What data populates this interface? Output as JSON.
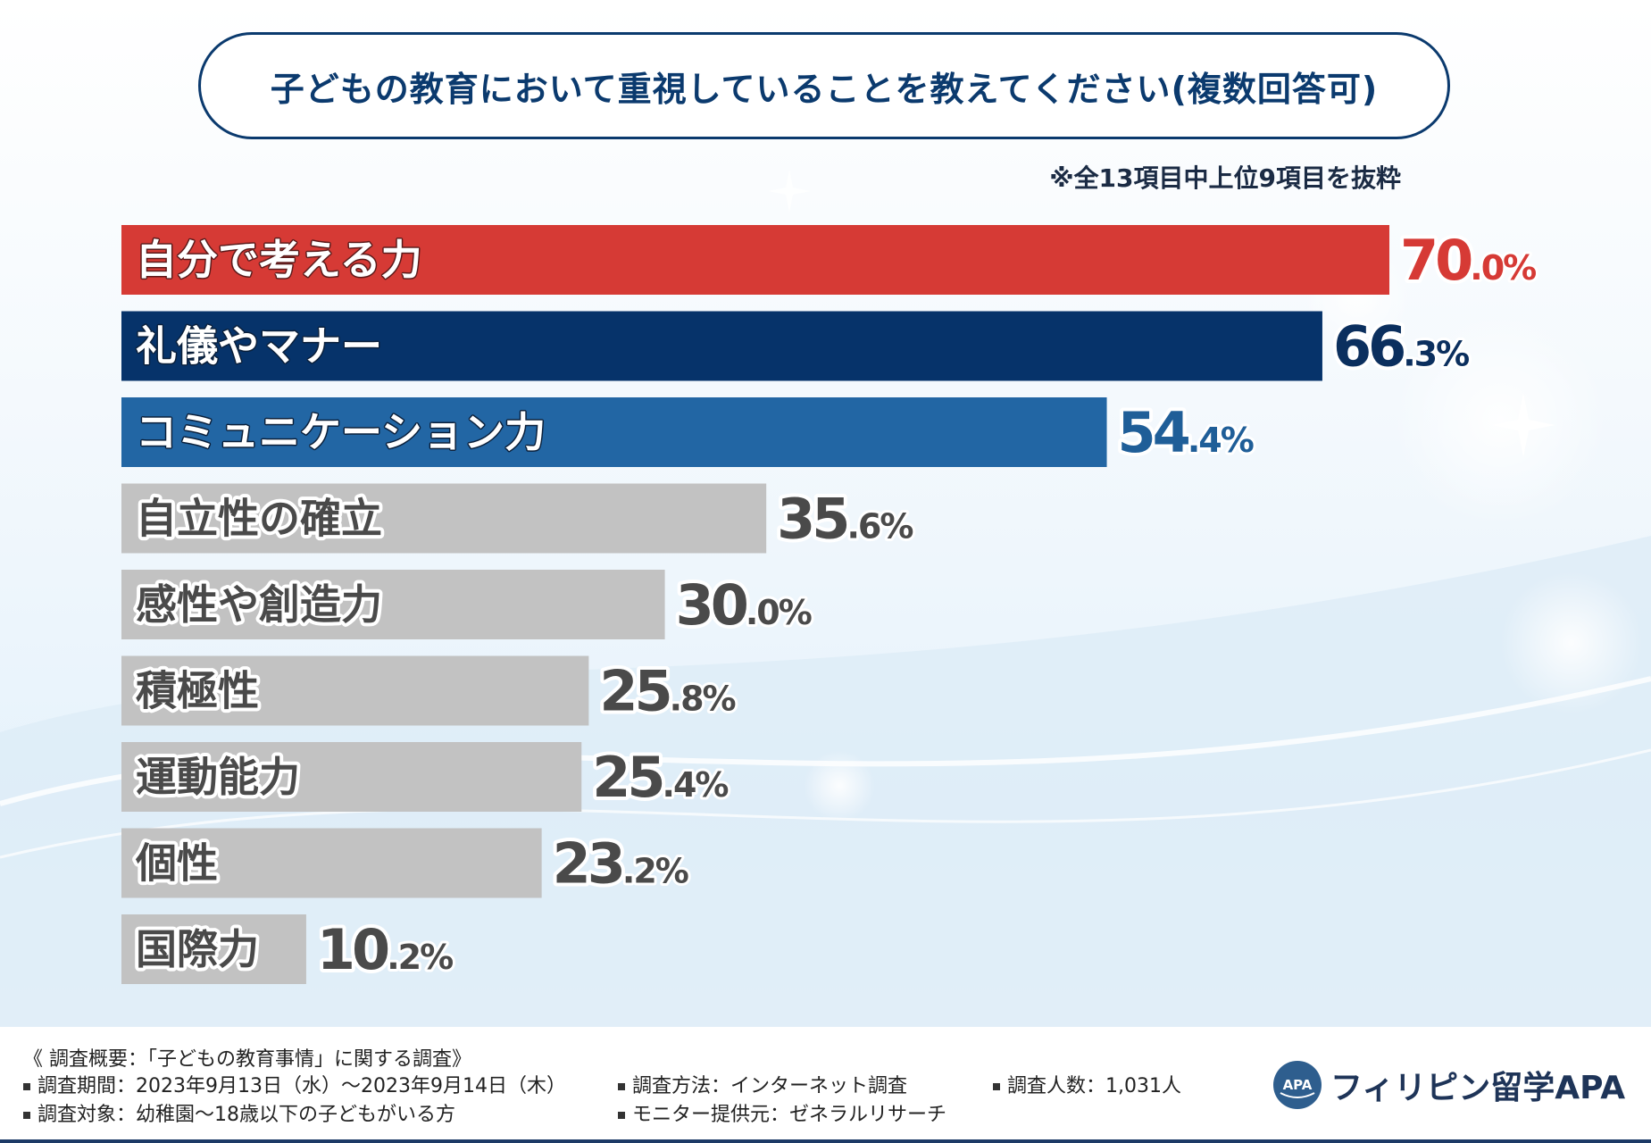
{
  "title": "子どもの教育において重視していることを教えてください(複数回答可)",
  "note": "※全13項目中上位9項目を抜粋",
  "chart_data": {
    "type": "bar",
    "orientation": "horizontal",
    "title": "子どもの教育において重視していることを教えてください(複数回答可)",
    "categories": [
      "自分で考える力",
      "礼儀やマナー",
      "コミュニケーション力",
      "自立性の確立",
      "感性や創造力",
      "積極性",
      "運動能力",
      "個性",
      "国際力"
    ],
    "values": [
      70.0,
      66.3,
      54.4,
      35.6,
      30.0,
      25.8,
      25.4,
      23.2,
      10.2
    ],
    "unit": "%",
    "bar_colors": [
      "#d63a35",
      "#06336a",
      "#2266a4",
      "#c2c2c2",
      "#c2c2c2",
      "#c2c2c2",
      "#c2c2c2",
      "#c2c2c2",
      "#c2c2c2"
    ],
    "value_colors": [
      "#d63a35",
      "#0b2f5e",
      "#1f5e98",
      "#4a4a4a",
      "#4a4a4a",
      "#4a4a4a",
      "#4a4a4a",
      "#4a4a4a",
      "#4a4a4a"
    ],
    "label_colors": [
      "#ffffff",
      "#ffffff",
      "#ffffff",
      "#4a4a4a",
      "#4a4a4a",
      "#4a4a4a",
      "#4a4a4a",
      "#4a4a4a",
      "#4a4a4a"
    ],
    "xlim": [
      0,
      70
    ]
  },
  "footer": {
    "heading": "《 調査概要：「子どもの教育事情」に関する調査》",
    "period": "調査期間：2023年9月13日（水）～2023年9月14日（木）",
    "method": "調査方法：インターネット調査",
    "count": "調査人数：1,031人",
    "target": "調査対象：幼稚園～18歳以下の子どもがいる方",
    "provider": "モニター提供元：ゼネラルリサーチ"
  },
  "logo": {
    "mark": "APA",
    "text": "フィリピン留学APA"
  }
}
